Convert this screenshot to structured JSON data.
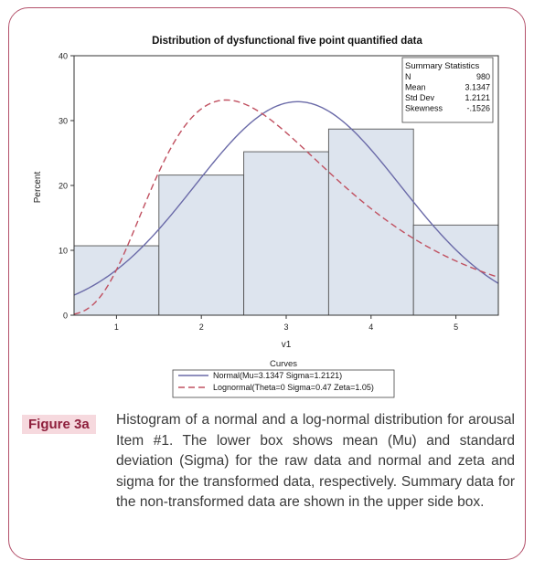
{
  "figure": {
    "label": "Figure 3a",
    "caption": "Histogram of a normal and a log-normal distribution for arousal Item #1. The lower box shows mean (Mu) and standard deviation (Sigma) for the raw data and normal and zeta and sigma for the transformed data, respectively. Summary data for the non-transformed data are shown in the upper side box.",
    "border_color": "#b3506a",
    "label_bg": "#f6d9de",
    "label_color": "#8e1f3c"
  },
  "chart_data": {
    "type": "bar",
    "title": "Distribution of dysfunctional five point quantified data",
    "xlabel": "v1",
    "ylabel": "Percent",
    "categories": [
      "1",
      "2",
      "3",
      "4",
      "5"
    ],
    "values": [
      10.7,
      21.6,
      25.2,
      28.7,
      13.9
    ],
    "xlim": [
      0.5,
      5.5
    ],
    "ylim": [
      0,
      40
    ],
    "yticks": [
      "0",
      "10",
      "20",
      "30",
      "40"
    ],
    "bar_fill": "#dde4ee",
    "bar_stroke": "#555555",
    "curves": [
      {
        "name": "Normal(Mu=3.1347 Sigma=1.2121)",
        "style": "solid",
        "color": "#6a6aa8",
        "dist": "normal",
        "mu": 3.1347,
        "sigma": 1.2121
      },
      {
        "name": "Lognormal(Theta=0 Sigma=0.47 Zeta=1.05)",
        "style": "dashed",
        "color": "#c05060",
        "dist": "lognormal",
        "theta": 0,
        "sigma": 0.47,
        "zeta": 1.05
      }
    ],
    "legend_title": "Curves",
    "legend_position": "bottom",
    "summary": {
      "title": "Summary Statistics",
      "rows": [
        {
          "label": "N",
          "value": "980"
        },
        {
          "label": "Mean",
          "value": "3.1347"
        },
        {
          "label": "Std Dev",
          "value": "1.2121"
        },
        {
          "label": "Skewness",
          "value": "-.1526"
        }
      ]
    },
    "grid": false
  }
}
